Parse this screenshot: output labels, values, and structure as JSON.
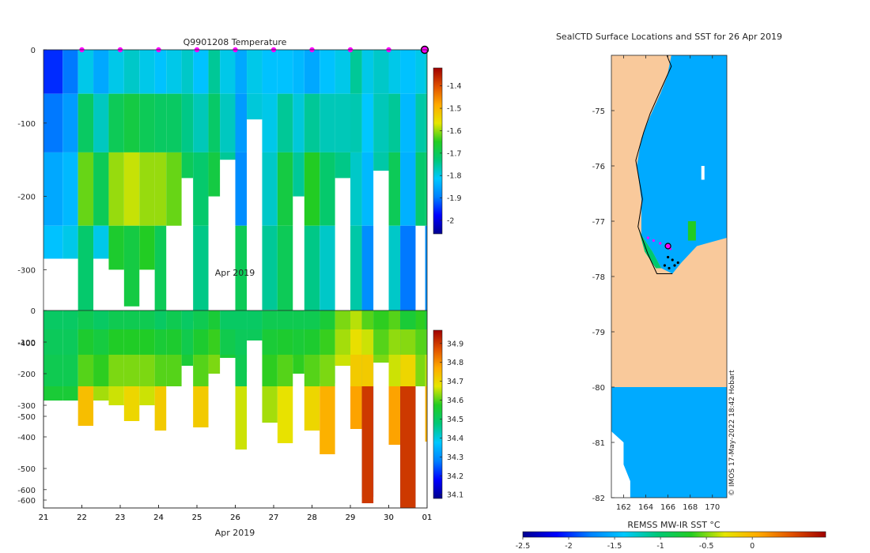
{
  "chart_data": [
    {
      "id": "temperature-section",
      "type": "heatmap",
      "title": "Q9901208  Temperature",
      "xlabel": "Apr 2019",
      "ylabel": "",
      "x_tick_labels": [
        "21",
        "22",
        "23",
        "24",
        "25",
        "26",
        "27",
        "28",
        "29",
        "30",
        "01"
      ],
      "y_ticks": [
        0,
        -100,
        -200,
        -300,
        -400,
        -500,
        -600
      ],
      "ylim": [
        -625,
        0
      ],
      "colorbar": {
        "min": -2.06,
        "max": -1.32,
        "ticks": [
          -1.4,
          -1.5,
          -1.6,
          -1.7,
          -1.8,
          -1.9,
          -2
        ],
        "colormap": [
          "#00008f",
          "#0000ff",
          "#0080ff",
          "#00c8ff",
          "#00c878",
          "#22cc22",
          "#e6e600",
          "#ffaa00",
          "#e05000",
          "#a00000"
        ]
      },
      "surface_markers_day": [
        22,
        23,
        24,
        25,
        26,
        27,
        28,
        29,
        30
      ],
      "profiles": [
        {
          "day": 21.0,
          "bottom": -285,
          "top": -1.95,
          "mid": -1.85,
          "deep": -1.82
        },
        {
          "day": 21.5,
          "bottom": -285,
          "top": -1.9,
          "mid": -1.83,
          "deep": -1.8
        },
        {
          "day": 21.9,
          "bottom": -365,
          "top": -1.8,
          "mid": -1.62,
          "deep": -1.72
        },
        {
          "day": 22.3,
          "bottom": -285,
          "top": -1.85,
          "mid": -1.7,
          "deep": -1.8
        },
        {
          "day": 22.7,
          "bottom": -300,
          "top": -1.8,
          "mid": -1.6,
          "deep": -1.66
        },
        {
          "day": 23.1,
          "bottom": -350,
          "top": -1.78,
          "mid": -1.58,
          "deep": -1.68
        },
        {
          "day": 23.5,
          "bottom": -300,
          "top": -1.8,
          "mid": -1.6,
          "deep": -1.65
        },
        {
          "day": 23.9,
          "bottom": -380,
          "top": -1.82,
          "mid": -1.6,
          "deep": -1.7
        },
        {
          "day": 24.2,
          "bottom": -240,
          "top": -1.8,
          "mid": -1.62,
          "deep": -1.68
        },
        {
          "day": 24.6,
          "bottom": -175,
          "top": -1.78,
          "mid": -1.7,
          "deep": -1.72
        },
        {
          "day": 24.9,
          "bottom": -370,
          "top": -1.82,
          "mid": -1.72,
          "deep": -1.74
        },
        {
          "day": 25.3,
          "bottom": -200,
          "top": -1.75,
          "mid": -1.68,
          "deep": -1.7
        },
        {
          "day": 25.6,
          "bottom": -150,
          "top": -1.8,
          "mid": -1.75,
          "deep": -1.76
        },
        {
          "day": 26.0,
          "bottom": -440,
          "top": -1.85,
          "mid": -1.88,
          "deep": -1.7
        },
        {
          "day": 26.3,
          "bottom": -95,
          "top": -1.8,
          "mid": -1.78,
          "deep": -1.78
        },
        {
          "day": 26.7,
          "bottom": -355,
          "top": -1.82,
          "mid": -1.78,
          "deep": -1.75
        },
        {
          "day": 27.1,
          "bottom": -420,
          "top": -1.82,
          "mid": -1.68,
          "deep": -1.7
        },
        {
          "day": 27.5,
          "bottom": -200,
          "top": -1.83,
          "mid": -1.75,
          "deep": -1.74
        },
        {
          "day": 27.8,
          "bottom": -380,
          "top": -1.85,
          "mid": -1.65,
          "deep": -1.74
        },
        {
          "day": 28.2,
          "bottom": -455,
          "top": -1.82,
          "mid": -1.72,
          "deep": -1.78
        },
        {
          "day": 28.6,
          "bottom": -175,
          "top": -1.8,
          "mid": -1.74,
          "deep": -1.76
        },
        {
          "day": 29.0,
          "bottom": -375,
          "top": -1.75,
          "mid": -1.78,
          "deep": -1.76
        },
        {
          "day": 29.3,
          "bottom": -610,
          "top": -1.8,
          "mid": -1.83,
          "deep": -1.88
        },
        {
          "day": 29.6,
          "bottom": -165,
          "top": -1.78,
          "mid": -1.76,
          "deep": -1.74
        },
        {
          "day": 30.0,
          "bottom": -425,
          "top": -1.8,
          "mid": -1.7,
          "deep": -1.78
        },
        {
          "day": 30.3,
          "bottom": -625,
          "top": -1.82,
          "mid": -1.84,
          "deep": -1.9
        },
        {
          "day": 30.7,
          "bottom": -240,
          "top": -1.8,
          "mid": -1.72,
          "deep": -1.74
        },
        {
          "day": 30.95,
          "bottom": -415,
          "top": -1.78,
          "mid": -1.72,
          "deep": -1.88
        }
      ]
    },
    {
      "id": "salinity-section",
      "type": "heatmap",
      "title": "",
      "xlabel": "Apr 2019",
      "ylabel": "",
      "x_tick_labels": [
        "21",
        "22",
        "23",
        "24",
        "25",
        "26",
        "27",
        "28",
        "29",
        "30",
        "01"
      ],
      "y_ticks": [
        0,
        -100,
        -200,
        -300,
        -400,
        -500,
        -600
      ],
      "ylim": [
        -625,
        0
      ],
      "colorbar": {
        "min": 34.08,
        "max": 34.97,
        "ticks": [
          34.9,
          34.8,
          34.7,
          34.6,
          34.5,
          34.4,
          34.3,
          34.2,
          34.1
        ],
        "colormap": [
          "#00008f",
          "#0000ff",
          "#0080ff",
          "#00c8ff",
          "#00c878",
          "#22cc22",
          "#e6e600",
          "#ffaa00",
          "#e05000",
          "#a00000"
        ]
      },
      "profiles": [
        {
          "day": 21.0,
          "bottom": -285,
          "top": 34.5,
          "mid": 34.52,
          "deep": 34.55
        },
        {
          "day": 21.5,
          "bottom": -285,
          "top": 34.5,
          "mid": 34.52,
          "deep": 34.55
        },
        {
          "day": 21.9,
          "bottom": -365,
          "top": 34.52,
          "mid": 34.6,
          "deep": 34.74
        },
        {
          "day": 22.3,
          "bottom": -285,
          "top": 34.5,
          "mid": 34.58,
          "deep": 34.64
        },
        {
          "day": 22.7,
          "bottom": -300,
          "top": 34.52,
          "mid": 34.62,
          "deep": 34.66
        },
        {
          "day": 23.1,
          "bottom": -350,
          "top": 34.52,
          "mid": 34.62,
          "deep": 34.7
        },
        {
          "day": 23.5,
          "bottom": -300,
          "top": 34.52,
          "mid": 34.62,
          "deep": 34.66
        },
        {
          "day": 23.9,
          "bottom": -380,
          "top": 34.5,
          "mid": 34.6,
          "deep": 34.72
        },
        {
          "day": 24.2,
          "bottom": -240,
          "top": 34.52,
          "mid": 34.6,
          "deep": 34.64
        },
        {
          "day": 24.6,
          "bottom": -175,
          "top": 34.5,
          "mid": 34.55,
          "deep": 34.58
        },
        {
          "day": 24.9,
          "bottom": -370,
          "top": 34.52,
          "mid": 34.6,
          "deep": 34.72
        },
        {
          "day": 25.3,
          "bottom": -200,
          "top": 34.55,
          "mid": 34.62,
          "deep": 34.65
        },
        {
          "day": 25.6,
          "bottom": -150,
          "top": 34.5,
          "mid": 34.55,
          "deep": 34.55
        },
        {
          "day": 26.0,
          "bottom": -440,
          "top": 34.5,
          "mid": 34.52,
          "deep": 34.66
        },
        {
          "day": 26.3,
          "bottom": -95,
          "top": 34.5,
          "mid": 34.52,
          "deep": 34.52
        },
        {
          "day": 26.7,
          "bottom": -355,
          "top": 34.52,
          "mid": 34.58,
          "deep": 34.64
        },
        {
          "day": 27.1,
          "bottom": -420,
          "top": 34.52,
          "mid": 34.6,
          "deep": 34.68
        },
        {
          "day": 27.5,
          "bottom": -200,
          "top": 34.52,
          "mid": 34.58,
          "deep": 34.6
        },
        {
          "day": 27.8,
          "bottom": -380,
          "top": 34.52,
          "mid": 34.6,
          "deep": 34.7
        },
        {
          "day": 28.2,
          "bottom": -455,
          "top": 34.55,
          "mid": 34.62,
          "deep": 34.76
        },
        {
          "day": 28.6,
          "bottom": -175,
          "top": 34.62,
          "mid": 34.66,
          "deep": 34.68
        },
        {
          "day": 29.0,
          "bottom": -375,
          "top": 34.65,
          "mid": 34.72,
          "deep": 34.78
        },
        {
          "day": 29.3,
          "bottom": -610,
          "top": 34.6,
          "mid": 34.72,
          "deep": 34.9
        },
        {
          "day": 29.6,
          "bottom": -165,
          "top": 34.58,
          "mid": 34.62,
          "deep": 34.64
        },
        {
          "day": 30.0,
          "bottom": -425,
          "top": 34.6,
          "mid": 34.66,
          "deep": 34.78
        },
        {
          "day": 30.3,
          "bottom": -625,
          "top": 34.55,
          "mid": 34.7,
          "deep": 34.9
        },
        {
          "day": 30.7,
          "bottom": -240,
          "top": 34.58,
          "mid": 34.62,
          "deep": 34.66
        },
        {
          "day": 30.95,
          "bottom": -415,
          "top": 34.55,
          "mid": 34.65,
          "deep": 34.76
        }
      ]
    },
    {
      "id": "sst-map",
      "type": "map",
      "title": "SealCTD Surface Locations and SST for 26 Apr 2019",
      "xlabel": "",
      "ylabel": "",
      "x_ticks": [
        162,
        164,
        166,
        168,
        170
      ],
      "y_ticks": [
        -75,
        -76,
        -77,
        -78,
        -79,
        -80,
        -81,
        -82
      ],
      "xlim": [
        160.9,
        171.3
      ],
      "ylim": [
        -82.0,
        -74.0
      ],
      "colorbar": {
        "label": "REMSS MW-IR SST °C",
        "min": -2.5,
        "max": 0.8,
        "ticks": [
          -2.5,
          -2,
          -1.5,
          -1,
          -0.5,
          0
        ],
        "tick_labels": [
          "-2.5",
          "-2",
          "-1.5",
          "-1",
          "-0.5",
          "0"
        ],
        "colormap": [
          "#00008f",
          "#0000ff",
          "#0080ff",
          "#00c8ff",
          "#00c878",
          "#22cc22",
          "#e6e600",
          "#ffaa00",
          "#e05000",
          "#a00000"
        ]
      },
      "land_color": "#f9c99b",
      "ocean_color": "#00aaff",
      "ice_shelf_edge_lat": -80.0,
      "seal_track": [
        {
          "lon": 164.2,
          "lat": -77.3
        },
        {
          "lon": 164.7,
          "lat": -77.35
        },
        {
          "lon": 165.3,
          "lat": -77.4
        },
        {
          "lon": 165.8,
          "lat": -77.45
        },
        {
          "lon": 166.2,
          "lat": -77.5
        },
        {
          "lon": 166.0,
          "lat": -77.65
        },
        {
          "lon": 165.7,
          "lat": -77.8
        },
        {
          "lon": 166.1,
          "lat": -77.85
        },
        {
          "lon": 166.6,
          "lat": -77.8
        },
        {
          "lon": 166.9,
          "lat": -77.75
        },
        {
          "lon": 166.4,
          "lat": -77.7
        }
      ],
      "highlight_location": {
        "lon": 166.0,
        "lat": -77.45
      },
      "credit": "© IMOS 17-May-2022 18:42 Hobart"
    }
  ]
}
